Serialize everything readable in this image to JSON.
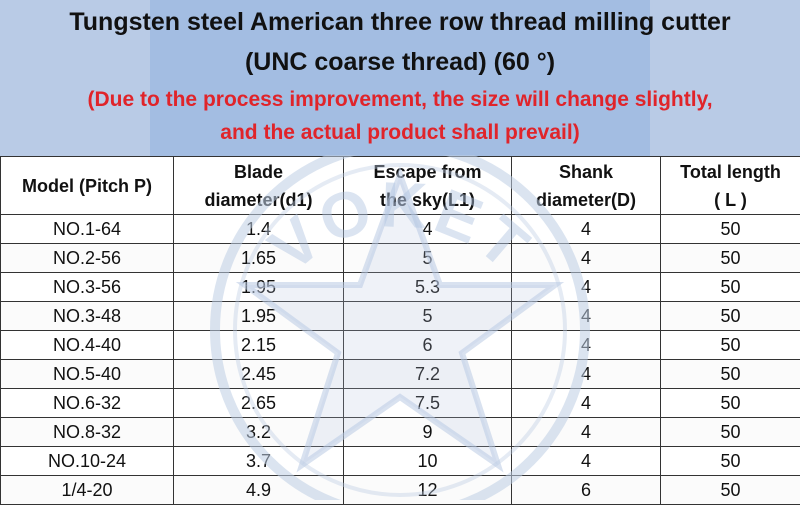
{
  "header": {
    "title_line1": "Tungsten steel American three row thread milling cutter",
    "title_line2": "(UNC coarse thread) (60 °)",
    "note_line1": "(Due to the process improvement, the size will change slightly,",
    "note_line2": "and the actual product shall prevail)"
  },
  "table": {
    "headers": [
      {
        "line1": "Model (Pitch P)",
        "line2": ""
      },
      {
        "line1": "Blade",
        "line2": "diameter(d1)"
      },
      {
        "line1": "Escape from",
        "line2": "the sky(L1)"
      },
      {
        "line1": "Shank",
        "line2": "diameter(D)"
      },
      {
        "line1": "Total length",
        "line2": "( L )"
      }
    ],
    "rows": [
      [
        "NO.1-64",
        "1.4",
        "4",
        "4",
        "50"
      ],
      [
        "NO.2-56",
        "1.65",
        "5",
        "4",
        "50"
      ],
      [
        "NO.3-56",
        "1.95",
        "5.3",
        "4",
        "50"
      ],
      [
        "NO.3-48",
        "1.95",
        "5",
        "4",
        "50"
      ],
      [
        "NO.4-40",
        "2.15",
        "6",
        "4",
        "50"
      ],
      [
        "NO.5-40",
        "2.45",
        "7.2",
        "4",
        "50"
      ],
      [
        "NO.6-32",
        "2.65",
        "7.5",
        "4",
        "50"
      ],
      [
        "NO.8-32",
        "3.2",
        "9",
        "4",
        "50"
      ],
      [
        "NO.10-24",
        "3.7",
        "10",
        "4",
        "50"
      ],
      [
        "1/4-20",
        "4.9",
        "12",
        "6",
        "50"
      ]
    ]
  },
  "watermark": {
    "text": "VOKET",
    "icon": "star-seal-icon"
  },
  "colors": {
    "header_bg": "#b9cbe6",
    "header_panel": "#a3bde2",
    "note_red": "#e0242a",
    "border": "#333333"
  }
}
